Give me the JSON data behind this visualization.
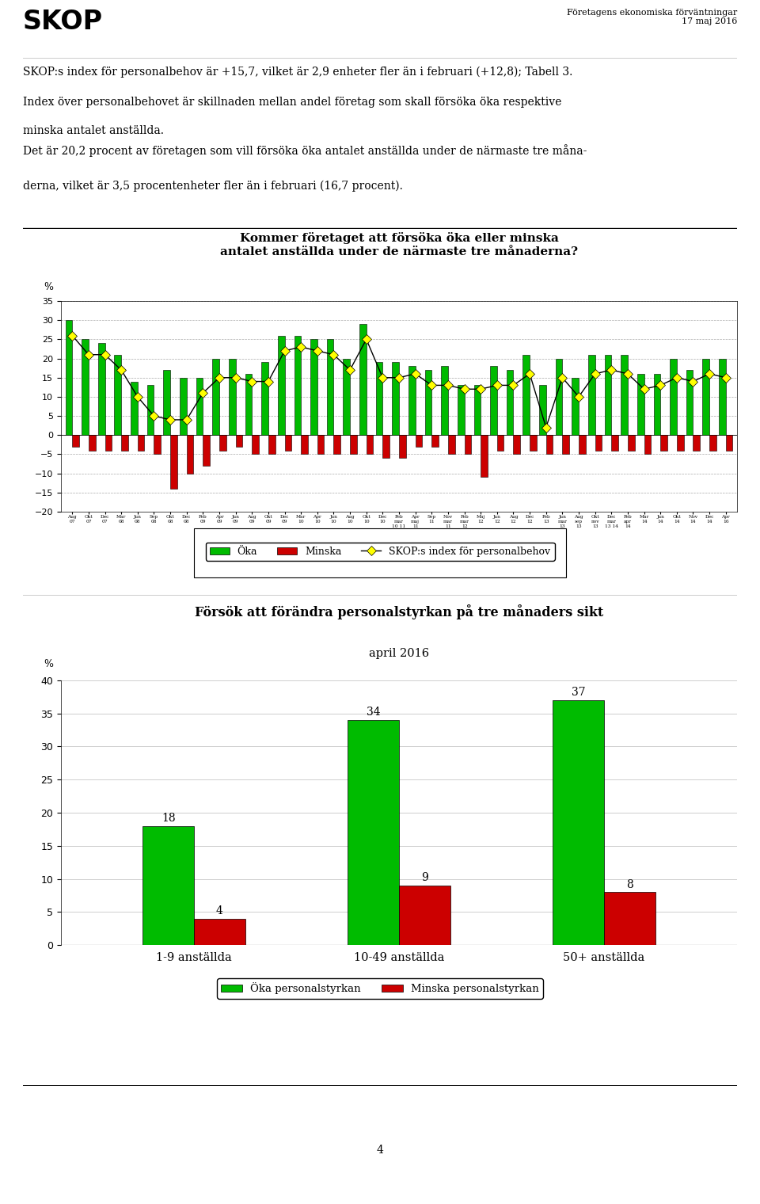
{
  "title": "SKOP",
  "header_right_line1": "Företagens ekonomiska förväntningar",
  "header_right_line2": "17 maj 2016",
  "para1_line1": "SKOP:s index för personalbehov är +15,7, vilket är 2,9 enheter fler än i februari (+12,8); Tabell 3.",
  "para1_line2": "Index över personalbehovet är skillnaden mellan andel företag som skall försöka öka respektive",
  "para1_line3": "minska antalet anställda.",
  "para2_line1": "Det är 20,2 procent av företagen som vill försöka öka antalet anställda under de närmaste tre måna-",
  "para2_line2": "derna, vilket är 3,5 procentenheter fler än i februari (16,7 procent).",
  "chart1_title_line1": "Kommer företaget att försöka öka eller minska",
  "chart1_title_line2": "antalet anställda under de närmaste tre månaderna?",
  "chart1_ylabel": "%",
  "chart1_ylim": [
    -20,
    35
  ],
  "chart1_yticks": [
    -20,
    -15,
    -10,
    -5,
    0,
    5,
    10,
    15,
    20,
    25,
    30,
    35
  ],
  "green_bars": [
    30,
    25,
    24,
    21,
    14,
    13,
    17,
    15,
    15,
    20,
    20,
    16,
    19,
    26,
    26,
    25,
    25,
    20,
    29,
    19,
    19,
    18,
    17,
    18,
    13,
    13,
    18,
    17,
    21,
    13,
    20,
    15,
    21,
    21,
    21,
    16,
    16,
    20,
    17,
    20,
    20
  ],
  "red_bars": [
    -3,
    -4,
    -4,
    -4,
    -4,
    -5,
    -14,
    -10,
    -8,
    -4,
    -3,
    -5,
    -5,
    -4,
    -5,
    -5,
    -5,
    -5,
    -5,
    -6,
    -6,
    -3,
    -3,
    -5,
    -5,
    -11,
    -4,
    -5,
    -4,
    -5,
    -5,
    -5,
    -4,
    -4,
    -4,
    -5,
    -4,
    -4,
    -4,
    -4,
    -4
  ],
  "index_line": [
    26,
    21,
    21,
    17,
    10,
    5,
    4,
    4,
    11,
    15,
    15,
    14,
    14,
    22,
    23,
    22,
    21,
    17,
    25,
    15,
    15,
    16,
    13,
    13,
    12,
    12,
    13,
    13,
    16,
    2,
    15,
    10,
    16,
    17,
    16,
    12,
    13,
    15,
    14,
    16,
    15
  ],
  "tick_labels": [
    "Aug\n07",
    "Okt\n07",
    "Dec\n07",
    "Mar\n08",
    "Jun\n08",
    "Sep\n08",
    "Okt\n08",
    "Dec\n08",
    "Feb\n09",
    "Apr\n09",
    "Jun\n09",
    "Aug\n09",
    "Okt\n09",
    "Dec\n09",
    "Mar\n10",
    "Apr\n10",
    "Jun\n10",
    "Aug\n10",
    "Okt\n10",
    "Dec\n10",
    "Feb\nmar\n10 11",
    "Apr\nmaj\n11",
    "Sep\n11",
    "Nov\nmar\n11",
    "Feb\nmar\n12",
    "Maj\n12",
    "Jun\n12",
    "Aug\n12",
    "Dec\n12",
    "Feb\n13",
    "Jun\nmar\n13",
    "Aug\nsep\n13",
    "Okt\nnov\n13",
    "Dec\nmar\n13 14",
    "Feb\napr\n14",
    "Mar\n14",
    "Jun\n14",
    "Okt\n14",
    "Nov\n14",
    "Dec\n14",
    "Apr\n16"
  ],
  "chart2_title": "Försök att förändra personalstyrkan på tre månaders sikt",
  "chart2_subtitle": "april 2016",
  "chart2_ylabel": "%",
  "chart2_ylim": [
    0,
    40
  ],
  "chart2_yticks": [
    0,
    5,
    10,
    15,
    20,
    25,
    30,
    35,
    40
  ],
  "chart2_categories": [
    "1-9 anställda",
    "10-49 anställda",
    "50+ anställda"
  ],
  "chart2_green": [
    18,
    34,
    37
  ],
  "chart2_red": [
    4,
    9,
    8
  ],
  "chart2_green_label": "Öka personalstyrkan",
  "chart2_red_label": "Minska personalstyrkan",
  "page_number": "4",
  "green_color": "#00bb00",
  "red_color": "#cc0000",
  "yellow_color": "#ffff00",
  "legend1_oka": "Öka",
  "legend1_minska": "Minska",
  "legend1_index": "SKOP:s index för personalbehov"
}
